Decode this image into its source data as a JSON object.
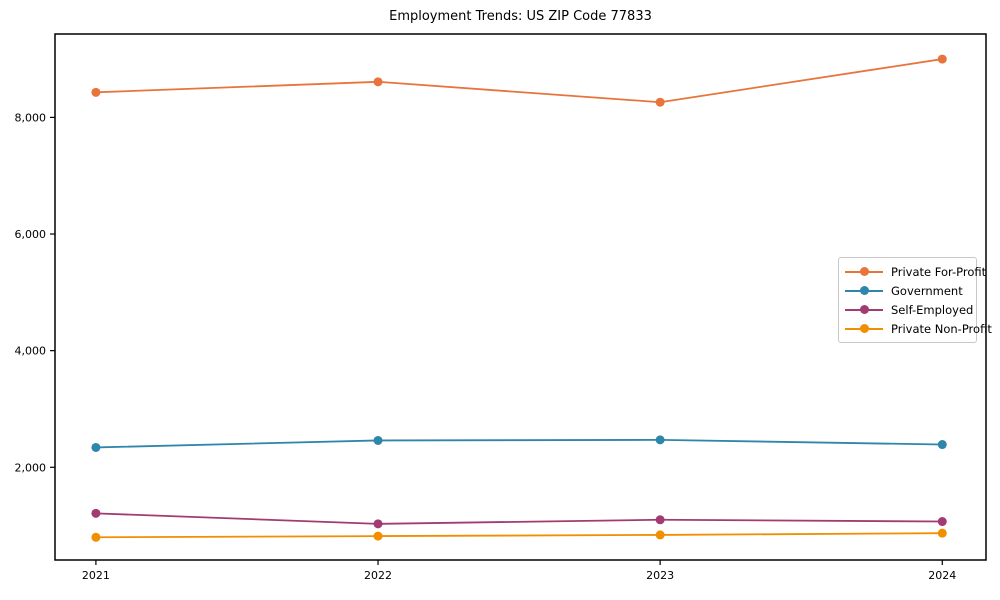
{
  "title": "Employment Trends: US ZIP Code 77833",
  "chart_data": {
    "type": "line",
    "title": "Employment Trends: US ZIP Code 77833",
    "xlabel": "",
    "ylabel": "",
    "x": [
      2021,
      2022,
      2023,
      2024
    ],
    "x_tick_labels": [
      "2021",
      "2022",
      "2023",
      "2024"
    ],
    "y_ticks": [
      2000,
      4000,
      6000,
      8000
    ],
    "y_tick_labels": [
      "2,000",
      "4,000",
      "6,000",
      "8,000"
    ],
    "xlim": [
      2020.855,
      2024.155
    ],
    "ylim": [
      410,
      9430
    ],
    "grid": false,
    "legend_position": "right-middle",
    "series": [
      {
        "name": "Private For-Profit",
        "color": "#E8743B",
        "values": [
          8430,
          8610,
          8260,
          9000
        ]
      },
      {
        "name": "Government",
        "color": "#2E86AB",
        "values": [
          2340,
          2460,
          2470,
          2390
        ]
      },
      {
        "name": "Self-Employed",
        "color": "#A23B72",
        "values": [
          1210,
          1030,
          1100,
          1070
        ]
      },
      {
        "name": "Private Non-Profit",
        "color": "#F18F01",
        "values": [
          800,
          820,
          840,
          870
        ]
      }
    ]
  }
}
